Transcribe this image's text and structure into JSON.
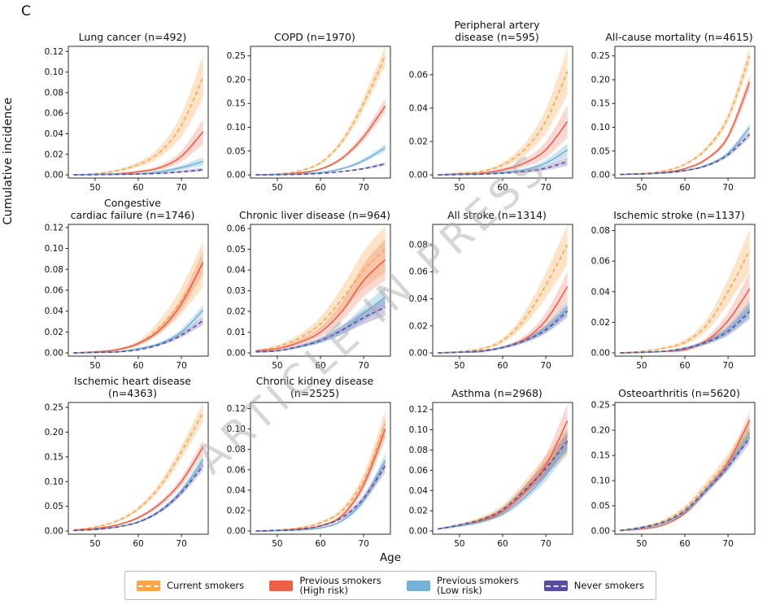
{
  "panel_label": "C",
  "ylabel": "Cumulative incidence",
  "xlabel": "Age",
  "watermark": "ARTICLE IN PRESS",
  "legend": [
    {
      "group": "current",
      "label": "Current smokers"
    },
    {
      "group": "high",
      "label": "Previous smokers\n(High risk)"
    },
    {
      "group": "low",
      "label": "Previous smokers\n(Low risk)"
    },
    {
      "group": "never",
      "label": "Never smokers"
    }
  ],
  "chart_data": {
    "type": "line",
    "x_label": "Age",
    "x": [
      45,
      50,
      55,
      60,
      65,
      70,
      75
    ],
    "xticks": [
      50,
      60,
      70
    ],
    "xlim": [
      43.8,
      76.2
    ],
    "groups": [
      {
        "id": "current",
        "name": "Current smokers",
        "color": "#F7A64A",
        "band_color": "rgba(247,166,74,0.30)",
        "dash": true
      },
      {
        "id": "high",
        "name": "Previous smokers (High risk)",
        "color": "#EF5F46",
        "band_color": "rgba(239,95,70,0.25)",
        "dash": false
      },
      {
        "id": "low",
        "name": "Previous smokers (Low risk)",
        "color": "#74B2D6",
        "band_color": "rgba(116,178,214,0.35)",
        "dash": false
      },
      {
        "id": "never",
        "name": "Never smokers",
        "color": "#5A4CA0",
        "band_color": "rgba(90,76,160,0.28)",
        "dash": true
      }
    ],
    "panels": [
      {
        "title": "Lung cancer (n=492)",
        "n": 492,
        "yticks": [
          0,
          0.02,
          0.04,
          0.06,
          0.08,
          0.1,
          0.12
        ],
        "ymax": 0.125,
        "series": {
          "current": {
            "values": [
              0,
              0.001,
              0.004,
              0.01,
              0.022,
              0.048,
              0.095
            ],
            "band_frac": 0.22
          },
          "high": {
            "values": [
              0,
              0.0005,
              0.001,
              0.003,
              0.007,
              0.018,
              0.042
            ],
            "band_frac": 0.28
          },
          "low": {
            "values": [
              0,
              0.0003,
              0.0006,
              0.001,
              0.003,
              0.007,
              0.013
            ],
            "band_frac": 0.3
          },
          "never": {
            "values": [
              0,
              0.0002,
              0.0004,
              0.0008,
              0.0015,
              0.003,
              0.005
            ],
            "band_frac": 0.3
          }
        }
      },
      {
        "title": "COPD (n=1970)",
        "n": 1970,
        "yticks": [
          0,
          0.05,
          0.1,
          0.15,
          0.2,
          0.25
        ],
        "ymax": 0.27,
        "series": {
          "current": {
            "values": [
              0,
              0.002,
              0.008,
              0.025,
              0.07,
              0.15,
              0.25
            ],
            "band_frac": 0.08
          },
          "high": {
            "values": [
              0,
              0.001,
              0.004,
              0.012,
              0.035,
              0.08,
              0.145
            ],
            "band_frac": 0.1
          },
          "low": {
            "values": [
              0,
              0.0005,
              0.002,
              0.005,
              0.013,
              0.03,
              0.057
            ],
            "band_frac": 0.12
          },
          "never": {
            "values": [
              0,
              0.0004,
              0.001,
              0.003,
              0.007,
              0.013,
              0.023
            ],
            "band_frac": 0.12
          }
        }
      },
      {
        "title": "Peripheral artery\ndisease (n=595)",
        "n": 595,
        "yticks": [
          0,
          0.02,
          0.04,
          0.06
        ],
        "ymax": 0.077,
        "series": {
          "current": {
            "values": [
              0,
              0.001,
              0.002,
              0.006,
              0.015,
              0.032,
              0.062
            ],
            "band_frac": 0.22
          },
          "high": {
            "values": [
              0,
              0.0005,
              0.001,
              0.003,
              0.007,
              0.015,
              0.032
            ],
            "band_frac": 0.3
          },
          "low": {
            "values": [
              0,
              0.0002,
              0.0006,
              0.0015,
              0.003,
              0.007,
              0.015
            ],
            "band_frac": 0.25
          },
          "never": {
            "values": [
              0,
              0.0002,
              0.0004,
              0.001,
              0.002,
              0.004,
              0.008
            ],
            "band_frac": 0.3
          }
        }
      },
      {
        "title": "All-cause mortality (n=4615)",
        "n": 4615,
        "yticks": [
          0,
          0.05,
          0.1,
          0.15,
          0.2,
          0.25
        ],
        "ymax": 0.27,
        "series": {
          "current": {
            "values": [
              0.001,
              0.003,
              0.008,
              0.022,
              0.055,
              0.12,
              0.25
            ],
            "band_frac": 0.07
          },
          "high": {
            "values": [
              0.001,
              0.002,
              0.005,
              0.013,
              0.033,
              0.08,
              0.195
            ],
            "band_frac": 0.08
          },
          "low": {
            "values": [
              0.001,
              0.002,
              0.004,
              0.009,
              0.02,
              0.045,
              0.1
            ],
            "band_frac": 0.07
          },
          "never": {
            "values": [
              0.001,
              0.002,
              0.004,
              0.009,
              0.019,
              0.042,
              0.085
            ],
            "band_frac": 0.08
          }
        }
      },
      {
        "title": "Congestive\ncardiac failure (n=1746)",
        "n": 1746,
        "yticks": [
          0,
          0.02,
          0.04,
          0.06,
          0.08,
          0.1,
          0.12
        ],
        "ymax": 0.123,
        "series": {
          "current": {
            "values": [
              0,
              0.001,
              0.003,
              0.009,
              0.025,
              0.05,
              0.085
            ],
            "band_frac": 0.25
          },
          "high": {
            "values": [
              0,
              0.001,
              0.003,
              0.009,
              0.022,
              0.047,
              0.087
            ],
            "band_frac": 0.12
          },
          "low": {
            "values": [
              0,
              0.0005,
              0.001,
              0.004,
              0.009,
              0.02,
              0.041
            ],
            "band_frac": 0.12
          },
          "never": {
            "values": [
              0,
              0.0005,
              0.001,
              0.003,
              0.008,
              0.017,
              0.031
            ],
            "band_frac": 0.12
          }
        }
      },
      {
        "title": "Chronic liver disease (n=964)",
        "n": 964,
        "yticks": [
          0,
          0.01,
          0.02,
          0.03,
          0.04,
          0.05,
          0.06
        ],
        "ymax": 0.062,
        "series": {
          "current": {
            "values": [
              0.001,
              0.003,
              0.007,
              0.014,
              0.026,
              0.04,
              0.05
            ],
            "band_frac": 0.22
          },
          "high": {
            "values": [
              0.001,
              0.002,
              0.005,
              0.01,
              0.02,
              0.035,
              0.045
            ],
            "band_frac": 0.22
          },
          "low": {
            "values": [
              0.0005,
              0.001,
              0.003,
              0.006,
              0.011,
              0.019,
              0.027
            ],
            "band_frac": 0.18
          },
          "never": {
            "values": [
              0.0005,
              0.001,
              0.003,
              0.006,
              0.011,
              0.017,
              0.022
            ],
            "band_frac": 0.18
          }
        }
      },
      {
        "title": "All stroke (n=1314)",
        "n": 1314,
        "yticks": [
          0,
          0.02,
          0.04,
          0.06,
          0.08
        ],
        "ymax": 0.095,
        "series": {
          "current": {
            "values": [
              0,
              0.001,
              0.003,
              0.009,
              0.025,
              0.05,
              0.08
            ],
            "band_frac": 0.18
          },
          "high": {
            "values": [
              0,
              0.0005,
              0.001,
              0.004,
              0.01,
              0.024,
              0.049
            ],
            "band_frac": 0.22
          },
          "low": {
            "values": [
              0,
              0.0005,
              0.0015,
              0.004,
              0.009,
              0.018,
              0.033
            ],
            "band_frac": 0.15
          },
          "never": {
            "values": [
              0,
              0.0005,
              0.0015,
              0.004,
              0.009,
              0.017,
              0.031
            ],
            "band_frac": 0.15
          }
        }
      },
      {
        "title": "Ischemic stroke (n=1137)",
        "n": 1137,
        "yticks": [
          0,
          0.02,
          0.04,
          0.06,
          0.08
        ],
        "ymax": 0.084,
        "series": {
          "current": {
            "values": [
              0,
              0.001,
              0.003,
              0.007,
              0.018,
              0.04,
              0.067
            ],
            "band_frac": 0.2
          },
          "high": {
            "values": [
              0,
              0.0003,
              0.001,
              0.002,
              0.008,
              0.021,
              0.042
            ],
            "band_frac": 0.25
          },
          "low": {
            "values": [
              0,
              0.0004,
              0.001,
              0.003,
              0.007,
              0.015,
              0.029
            ],
            "band_frac": 0.18
          },
          "never": {
            "values": [
              0,
              0.0004,
              0.001,
              0.003,
              0.007,
              0.014,
              0.027
            ],
            "band_frac": 0.18
          }
        }
      },
      {
        "title": "Ischemic heart disease (n=4363)",
        "n": 4363,
        "yticks": [
          0,
          0.05,
          0.1,
          0.15,
          0.2,
          0.25
        ],
        "ymax": 0.26,
        "series": {
          "current": {
            "values": [
              0.002,
              0.008,
              0.02,
              0.045,
              0.09,
              0.16,
              0.24
            ],
            "band_frac": 0.08
          },
          "high": {
            "values": [
              0.002,
              0.005,
              0.012,
              0.027,
              0.055,
              0.1,
              0.17
            ],
            "band_frac": 0.08
          },
          "low": {
            "values": [
              0.001,
              0.003,
              0.008,
              0.018,
              0.04,
              0.08,
              0.145
            ],
            "band_frac": 0.07
          },
          "never": {
            "values": [
              0.001,
              0.003,
              0.008,
              0.018,
              0.04,
              0.078,
              0.132
            ],
            "band_frac": 0.07
          }
        }
      },
      {
        "title": "Chronic kidney disease (n=2525)",
        "n": 2525,
        "yticks": [
          0,
          0.02,
          0.04,
          0.06,
          0.08,
          0.1,
          0.12
        ],
        "ymax": 0.126,
        "series": {
          "current": {
            "values": [
              0,
              0.001,
              0.003,
              0.008,
              0.02,
              0.05,
              0.105
            ],
            "band_frac": 0.12
          },
          "high": {
            "values": [
              0,
              0.0005,
              0.002,
              0.005,
              0.015,
              0.045,
              0.1
            ],
            "band_frac": 0.1
          },
          "low": {
            "values": [
              0,
              0.0003,
              0.001,
              0.003,
              0.01,
              0.03,
              0.069
            ],
            "band_frac": 0.1
          },
          "never": {
            "values": [
              0,
              0.0005,
              0.0015,
              0.005,
              0.013,
              0.032,
              0.064
            ],
            "band_frac": 0.1
          }
        }
      },
      {
        "title": "Asthma (n=2968)",
        "n": 2968,
        "yticks": [
          0,
          0.02,
          0.04,
          0.06,
          0.08,
          0.1,
          0.12
        ],
        "ymax": 0.127,
        "series": {
          "current": {
            "values": [
              0.002,
              0.006,
              0.012,
              0.022,
              0.042,
              0.065,
              0.088
            ],
            "band_frac": 0.15
          },
          "high": {
            "values": [
              0.002,
              0.005,
              0.01,
              0.019,
              0.038,
              0.065,
              0.109
            ],
            "band_frac": 0.15
          },
          "low": {
            "values": [
              0.002,
              0.005,
              0.009,
              0.017,
              0.033,
              0.055,
              0.086
            ],
            "band_frac": 0.1
          },
          "never": {
            "values": [
              0.002,
              0.006,
              0.011,
              0.021,
              0.04,
              0.062,
              0.089
            ],
            "band_frac": 0.1
          }
        }
      },
      {
        "title": "Osteoarthritis (n=5620)",
        "n": 5620,
        "yticks": [
          0,
          0.05,
          0.1,
          0.15,
          0.2,
          0.25
        ],
        "ymax": 0.255,
        "series": {
          "current": {
            "values": [
              0.001,
              0.008,
              0.02,
              0.045,
              0.09,
              0.14,
              0.2
            ],
            "band_frac": 0.09
          },
          "high": {
            "values": [
              0.001,
              0.004,
              0.012,
              0.035,
              0.08,
              0.135,
              0.22
            ],
            "band_frac": 0.07
          },
          "low": {
            "values": [
              0.001,
              0.006,
              0.016,
              0.038,
              0.08,
              0.13,
              0.195
            ],
            "band_frac": 0.06
          },
          "never": {
            "values": [
              0.001,
              0.007,
              0.017,
              0.04,
              0.082,
              0.128,
              0.185
            ],
            "band_frac": 0.06
          }
        }
      }
    ]
  }
}
